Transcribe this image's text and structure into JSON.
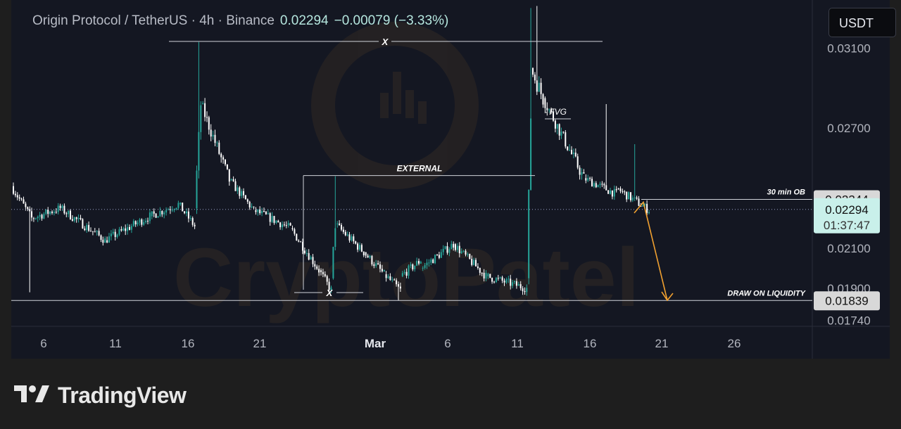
{
  "header": {
    "symbol": "Origin Protocol / TetherUS · 4h · Binance",
    "price": "0.02294",
    "change": "−0.00079 (−3.33%)"
  },
  "currency_button": {
    "label": "USDT"
  },
  "footer": {
    "brand": "TradingView"
  },
  "watermark": {
    "text": "CryptoPatel"
  },
  "colors": {
    "up": "#26a69a",
    "down": "#ffffff",
    "background": "#141722",
    "current_price_label": "#c9f0ea",
    "arrow": "#f0a030"
  },
  "chart_data": {
    "type": "candlestick",
    "x_tick_labels": [
      "6",
      "11",
      "16",
      "21",
      "Mar",
      "6",
      "11",
      "16",
      "21",
      "26"
    ],
    "y_tick_labels": [
      "0.03100",
      "0.02700",
      "0.02100",
      "0.01900",
      "0.01740"
    ],
    "y_ticks": [
      0.031,
      0.027,
      0.021,
      0.019,
      0.0174
    ],
    "ylim": [
      0.0171,
      0.0334
    ],
    "price_labels": [
      {
        "name": "30 min OB level",
        "value": 0.02344,
        "label": "0.02344"
      },
      {
        "name": "current price",
        "value": 0.02294,
        "label": "0.02294",
        "countdown": "01:37:47"
      },
      {
        "name": "draw on liquidity",
        "value": 0.01839,
        "label": "0.01839"
      }
    ],
    "annotations": [
      {
        "label": "X",
        "kind": "swing-high",
        "price": 0.03133
      },
      {
        "label": "EXTERNAL",
        "kind": "external-high",
        "price": 0.02463
      },
      {
        "label": "- FVG",
        "kind": "fair-value-gap",
        "price": 0.0285
      },
      {
        "label": "30 min OB",
        "kind": "order-block",
        "price": 0.02344
      },
      {
        "label": "X",
        "kind": "swing-low",
        "price": 0.0187
      },
      {
        "label": "DRAW ON LIQUIDITY",
        "kind": "liquidity-target",
        "price": 0.01839
      }
    ],
    "projection": {
      "from": 0.0233,
      "via": 0.0229,
      "to": 0.0184
    },
    "segments": [
      {
        "n": 10,
        "start": 0.0241,
        "end": 0.0225,
        "wick": 0.0002,
        "spike": {
          "i": 8,
          "low": 0.0188
        }
      },
      {
        "n": 14,
        "start": 0.0225,
        "end": 0.023,
        "wick": 0.0002
      },
      {
        "n": 22,
        "start": 0.023,
        "end": 0.0214,
        "wick": 0.0002
      },
      {
        "n": 22,
        "start": 0.0214,
        "end": 0.0226,
        "wick": 0.0002
      },
      {
        "n": 14,
        "start": 0.0226,
        "end": 0.0232,
        "wick": 0.0002
      },
      {
        "n": 8,
        "start": 0.0232,
        "end": 0.0221,
        "wick": 0.0002
      },
      {
        "n": 3,
        "start": 0.023,
        "end": 0.0282,
        "wick": 0.0004,
        "spike": {
          "i": 1,
          "high": 0.0313
        }
      },
      {
        "n": 14,
        "start": 0.0282,
        "end": 0.0244,
        "wick": 0.0003
      },
      {
        "n": 12,
        "start": 0.0244,
        "end": 0.0229,
        "wick": 0.0002
      },
      {
        "n": 18,
        "start": 0.0229,
        "end": 0.022,
        "wick": 0.0002
      },
      {
        "n": 14,
        "start": 0.022,
        "end": 0.0199,
        "wick": 0.0002
      },
      {
        "n": 6,
        "start": 0.0199,
        "end": 0.0189,
        "wick": 0.0002
      },
      {
        "n": 2,
        "start": 0.0195,
        "end": 0.0222,
        "wick": 0.0003,
        "spike": {
          "i": 1,
          "high": 0.0246
        }
      },
      {
        "n": 14,
        "start": 0.0222,
        "end": 0.0208,
        "wick": 0.0002
      },
      {
        "n": 10,
        "start": 0.0208,
        "end": 0.0197,
        "wick": 0.0002
      },
      {
        "n": 8,
        "start": 0.0197,
        "end": 0.0189,
        "wick": 0.0002,
        "spike": {
          "i": 6,
          "low": 0.0184
        }
      },
      {
        "n": 10,
        "start": 0.0196,
        "end": 0.0204,
        "wick": 0.0002
      },
      {
        "n": 16,
        "start": 0.02,
        "end": 0.0212,
        "wick": 0.0002
      },
      {
        "n": 16,
        "start": 0.0212,
        "end": 0.0196,
        "wick": 0.0002
      },
      {
        "n": 20,
        "start": 0.0196,
        "end": 0.019,
        "wick": 0.0002
      },
      {
        "n": 2,
        "start": 0.0195,
        "end": 0.0276,
        "wick": 0.0004,
        "spike": {
          "i": 1,
          "high": 0.033
        }
      },
      {
        "n": 6,
        "start": 0.03,
        "end": 0.0285,
        "wick": 0.0004,
        "spike": {
          "i": 2,
          "high": 0.0331
        }
      },
      {
        "n": 20,
        "start": 0.0285,
        "end": 0.0245,
        "wick": 0.0003
      },
      {
        "n": 16,
        "start": 0.0245,
        "end": 0.0237,
        "wick": 0.0002,
        "spike": {
          "i": 10,
          "high": 0.0282
        }
      },
      {
        "n": 16,
        "start": 0.024,
        "end": 0.0229,
        "wick": 0.0002,
        "spike": {
          "i": 8,
          "high": 0.0262
        }
      }
    ]
  }
}
